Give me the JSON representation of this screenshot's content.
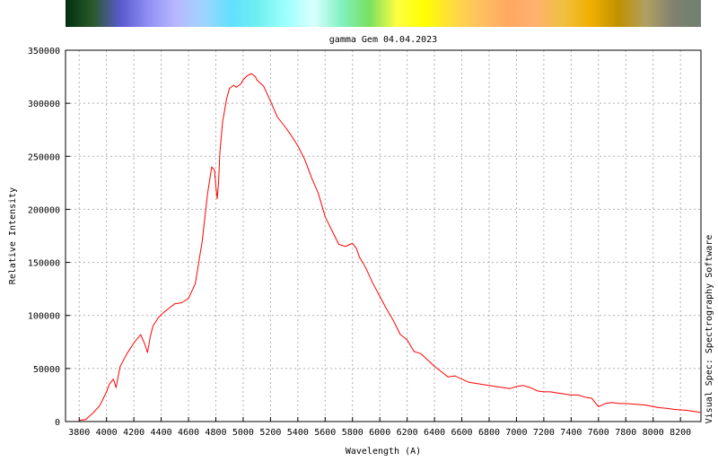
{
  "chart_data": {
    "type": "line",
    "title": "gamma Gem 04.04.2023",
    "xlabel": "Wavelength (A)",
    "ylabel": "Relative Intensity",
    "side_label": "Visual Spec: Spectrography Software",
    "xlim": [
      3700,
      8350
    ],
    "ylim": [
      0,
      350000
    ],
    "grid": true,
    "x_ticks": [
      3800,
      4000,
      4200,
      4400,
      4600,
      4800,
      5000,
      5200,
      5400,
      5600,
      5800,
      6000,
      6200,
      6400,
      6600,
      6800,
      7000,
      7200,
      7400,
      7600,
      7800,
      8000,
      8200
    ],
    "y_ticks": [
      0,
      50000,
      100000,
      150000,
      200000,
      250000,
      300000,
      350000
    ],
    "series": [
      {
        "color": "#ff0000",
        "x": [
          3800,
          3850,
          3900,
          3950,
          4000,
          4020,
          4050,
          4070,
          4100,
          4150,
          4200,
          4250,
          4280,
          4300,
          4320,
          4340,
          4380,
          4420,
          4460,
          4500,
          4550,
          4600,
          4650,
          4700,
          4740,
          4770,
          4790,
          4800,
          4810,
          4820,
          4830,
          4850,
          4880,
          4900,
          4930,
          4950,
          4980,
          5000,
          5030,
          5060,
          5090,
          5100,
          5150,
          5200,
          5250,
          5300,
          5350,
          5400,
          5450,
          5500,
          5550,
          5600,
          5650,
          5700,
          5750,
          5780,
          5800,
          5830,
          5850,
          5880,
          5900,
          5950,
          6000,
          6050,
          6100,
          6150,
          6200,
          6250,
          6300,
          6350,
          6400,
          6450,
          6500,
          6550,
          6600,
          6650,
          6700,
          6750,
          6800,
          6850,
          6900,
          6950,
          7000,
          7050,
          7100,
          7150,
          7200,
          7250,
          7300,
          7350,
          7400,
          7450,
          7500,
          7550,
          7600,
          7650,
          7700,
          7750,
          7800,
          7850,
          7900,
          7950,
          8000,
          8050,
          8100,
          8150,
          8200,
          8250,
          8300,
          8350
        ],
        "y": [
          1000,
          2000,
          8000,
          15000,
          28000,
          35000,
          40000,
          32000,
          52000,
          64000,
          74000,
          82000,
          73000,
          65000,
          80000,
          90000,
          98000,
          103000,
          107000,
          111000,
          112000,
          116000,
          130000,
          170000,
          215000,
          240000,
          237000,
          222000,
          210000,
          225000,
          255000,
          283000,
          305000,
          314000,
          317000,
          315000,
          318000,
          322000,
          326000,
          328000,
          325000,
          322000,
          316000,
          302000,
          287000,
          279000,
          270000,
          260000,
          247000,
          230000,
          215000,
          193000,
          180000,
          167000,
          165000,
          167000,
          168000,
          163000,
          155000,
          149000,
          144000,
          130000,
          118000,
          106000,
          95000,
          82000,
          77000,
          66000,
          64000,
          58000,
          52000,
          47000,
          42000,
          43000,
          40000,
          37000,
          36000,
          35000,
          34000,
          33000,
          32000,
          31000,
          33000,
          34000,
          32000,
          29000,
          28000,
          28000,
          27000,
          26000,
          25000,
          25000,
          23000,
          22000,
          14000,
          17000,
          18000,
          17000,
          17000,
          16500,
          16000,
          15500,
          14000,
          13000,
          12500,
          11500,
          11000,
          10500,
          9500,
          8500
        ]
      }
    ]
  },
  "spectrum_bar": {
    "colors": [
      "#003010",
      "#2a5a2a",
      "#5a5ad0",
      "#8f8ff5",
      "#b8b8ff",
      "#a0d4ff",
      "#60e0ff",
      "#70f0f0",
      "#a0ffff",
      "#d8ffff",
      "#80f0c0",
      "#78e060",
      "#ffff40",
      "#ffff00",
      "#ffdc40",
      "#ffc060",
      "#ffa860",
      "#ffb070",
      "#f0c040",
      "#f0b000",
      "#c09000",
      "#b0a060",
      "#808070",
      "#708070"
    ]
  }
}
